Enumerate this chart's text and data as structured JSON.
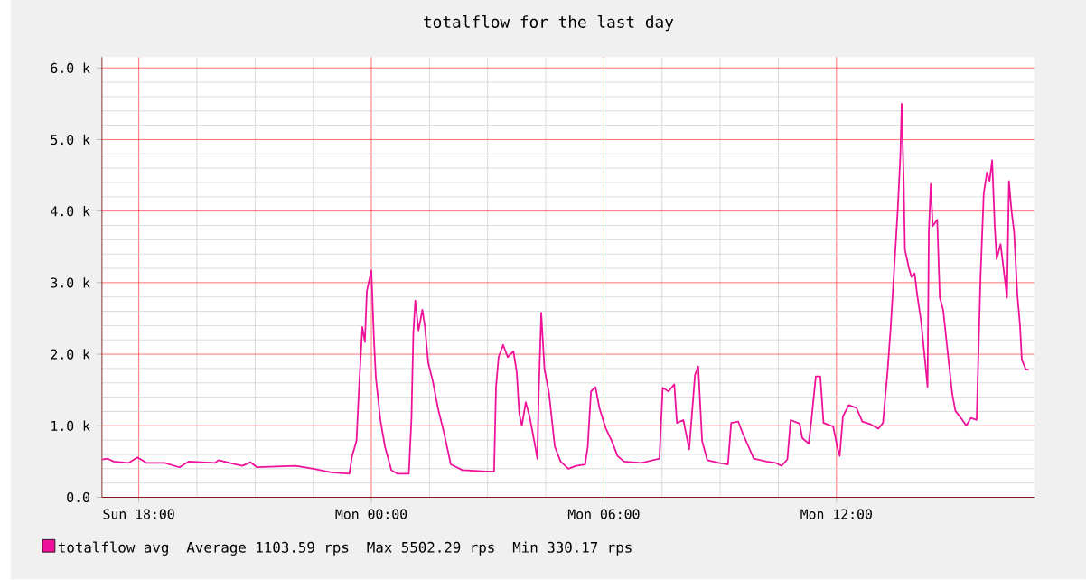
{
  "chart_data": {
    "type": "line",
    "title": "totalflow for the last day",
    "x": [
      "2000-01-02T17:03",
      "2000-01-02T17:12",
      "2000-01-02T17:21",
      "2000-01-02T17:44",
      "2000-01-02T17:58",
      "2000-01-02T18:12",
      "2000-01-02T18:40",
      "2000-01-02T19:03",
      "2000-01-02T19:17",
      "2000-01-02T19:58",
      "2000-01-02T20:03",
      "2000-01-02T20:40",
      "2000-01-02T20:53",
      "2000-01-02T21:03",
      "2000-01-02T22:03",
      "2000-01-02T22:30",
      "2000-01-02T22:58",
      "2000-01-02T23:26",
      "2000-01-02T23:30",
      "2000-01-02T23:37",
      "2000-01-02T23:41",
      "2000-01-02T23:46",
      "2000-01-02T23:50",
      "2000-01-02T23:53",
      "2000-01-03T00:00",
      "2000-01-03T00:04",
      "2000-01-03T00:07",
      "2000-01-03T00:14",
      "2000-01-03T00:21",
      "2000-01-03T00:31",
      "2000-01-03T00:40",
      "2000-01-03T00:58",
      "2000-01-03T01:02",
      "2000-01-03T01:05",
      "2000-01-03T01:08",
      "2000-01-03T01:13",
      "2000-01-03T01:19",
      "2000-01-03T01:23",
      "2000-01-03T01:28",
      "2000-01-03T01:35",
      "2000-01-03T01:43",
      "2000-01-03T01:52",
      "2000-01-03T02:03",
      "2000-01-03T02:21",
      "2000-01-03T02:58",
      "2000-01-03T03:10",
      "2000-01-03T03:13",
      "2000-01-03T03:17",
      "2000-01-03T03:24",
      "2000-01-03T03:31",
      "2000-01-03T03:40",
      "2000-01-03T03:45",
      "2000-01-03T03:49",
      "2000-01-03T03:53",
      "2000-01-03T03:59",
      "2000-01-03T04:05",
      "2000-01-03T04:12",
      "2000-01-03T04:17",
      "2000-01-03T04:19",
      "2000-01-03T04:23",
      "2000-01-03T04:28",
      "2000-01-03T04:35",
      "2000-01-03T04:40",
      "2000-01-03T04:44",
      "2000-01-03T04:53",
      "2000-01-03T05:05",
      "2000-01-03T05:17",
      "2000-01-03T05:31",
      "2000-01-03T05:35",
      "2000-01-03T05:40",
      "2000-01-03T05:47",
      "2000-01-03T05:53",
      "2000-01-03T06:03",
      "2000-01-03T06:12",
      "2000-01-03T06:21",
      "2000-01-03T06:31",
      "2000-01-03T06:58",
      "2000-01-03T07:26",
      "2000-01-03T07:31",
      "2000-01-03T07:40",
      "2000-01-03T07:49",
      "2000-01-03T07:53",
      "2000-01-03T08:03",
      "2000-01-03T08:12",
      "2000-01-03T08:21",
      "2000-01-03T08:26",
      "2000-01-03T08:32",
      "2000-01-03T08:40",
      "2000-01-03T08:58",
      "2000-01-03T09:12",
      "2000-01-03T09:17",
      "2000-01-03T09:28",
      "2000-01-03T09:35",
      "2000-01-03T09:52",
      "2000-01-03T10:12",
      "2000-01-03T10:26",
      "2000-01-03T10:35",
      "2000-01-03T10:44",
      "2000-01-03T10:49",
      "2000-01-03T11:03",
      "2000-01-03T11:07",
      "2000-01-03T11:17",
      "2000-01-03T11:21",
      "2000-01-03T11:28",
      "2000-01-03T11:35",
      "2000-01-03T11:40",
      "2000-01-03T11:55",
      "2000-01-03T12:01",
      "2000-01-03T12:05",
      "2000-01-03T12:10",
      "2000-01-03T12:19",
      "2000-01-03T12:31",
      "2000-01-03T12:40",
      "2000-01-03T12:53",
      "2000-01-03T13:05",
      "2000-01-03T13:12",
      "2000-01-03T13:19",
      "2000-01-03T13:24",
      "2000-01-03T13:29",
      "2000-01-03T13:35",
      "2000-01-03T13:39",
      "2000-01-03T13:41",
      "2000-01-03T13:44",
      "2000-01-03T13:46",
      "2000-01-03T13:52",
      "2000-01-03T13:56",
      "2000-01-03T14:01",
      "2000-01-03T14:05",
      "2000-01-03T14:11",
      "2000-01-03T14:17",
      "2000-01-03T14:21",
      "2000-01-03T14:23",
      "2000-01-03T14:26",
      "2000-01-03T14:29",
      "2000-01-03T14:36",
      "2000-01-03T14:40",
      "2000-01-03T14:45",
      "2000-01-03T14:53",
      "2000-01-03T14:59",
      "2000-01-03T15:04",
      "2000-01-03T15:15",
      "2000-01-03T15:21",
      "2000-01-03T15:28",
      "2000-01-03T15:37",
      "2000-01-03T15:43",
      "2000-01-03T15:48",
      "2000-01-03T15:53",
      "2000-01-03T15:57",
      "2000-01-03T16:01",
      "2000-01-03T16:05",
      "2000-01-03T16:08",
      "2000-01-03T16:14",
      "2000-01-03T16:19",
      "2000-01-03T16:24",
      "2000-01-03T16:27",
      "2000-01-03T16:31",
      "2000-01-03T16:35",
      "2000-01-03T16:40",
      "2000-01-03T16:44",
      "2000-01-03T16:47",
      "2000-01-03T16:53",
      "2000-01-03T16:58"
    ],
    "series": [
      {
        "name": "totalflow avg",
        "color": "#ee1199",
        "values": [
          530,
          540,
          500,
          480,
          560,
          480,
          480,
          420,
          500,
          480,
          520,
          440,
          490,
          420,
          440,
          400,
          350,
          330,
          570,
          790,
          1540,
          2380,
          2170,
          2880,
          3170,
          2210,
          1670,
          1080,
          710,
          380,
          330,
          330,
          1080,
          2290,
          2750,
          2330,
          2620,
          2380,
          1880,
          1630,
          1250,
          920,
          460,
          380,
          360,
          360,
          1540,
          1960,
          2130,
          1960,
          2040,
          1750,
          1170,
          1000,
          1330,
          1130,
          790,
          540,
          1420,
          2580,
          1790,
          1460,
          1040,
          710,
          500,
          400,
          440,
          460,
          710,
          1480,
          1540,
          1250,
          960,
          790,
          580,
          500,
          480,
          540,
          1530,
          1480,
          1580,
          1040,
          1080,
          670,
          1710,
          1830,
          790,
          520,
          480,
          460,
          1040,
          1060,
          890,
          540,
          500,
          480,
          440,
          530,
          1080,
          1030,
          830,
          750,
          1060,
          1690,
          1690,
          1040,
          990,
          710,
          580,
          1130,
          1290,
          1250,
          1060,
          1020,
          960,
          1040,
          1750,
          2380,
          3130,
          4040,
          4790,
          5500,
          4460,
          3460,
          3210,
          3080,
          3130,
          2830,
          2460,
          1920,
          1540,
          3710,
          4380,
          3790,
          3880,
          2790,
          2630,
          1960,
          1460,
          1210,
          1080,
          1000,
          1110,
          1080,
          3080,
          4250,
          4540,
          4420,
          4710,
          3790,
          3330,
          3540,
          3170,
          2790,
          4420,
          4000,
          3710,
          2830,
          2420,
          1920,
          1790,
          1780
        ]
      }
    ],
    "xlim": [
      "2000-01-02T17:03",
      "2000-01-03T17:06"
    ],
    "xticks": [
      {
        "value": "2000-01-02T18:00",
        "label": "Sun 18:00"
      },
      {
        "value": "2000-01-03T00:00",
        "label": "Mon 00:00"
      },
      {
        "value": "2000-01-03T06:00",
        "label": "Mon 06:00"
      },
      {
        "value": "2000-01-03T12:00",
        "label": "Mon 12:00"
      }
    ],
    "ylim": [
      0,
      6150
    ],
    "yticks": [
      {
        "value": 0,
        "label": "0.0"
      },
      {
        "value": 1000,
        "label": "1.0 k"
      },
      {
        "value": 2000,
        "label": "2.0 k"
      },
      {
        "value": 3000,
        "label": "3.0 k"
      },
      {
        "value": 4000,
        "label": "4.0 k"
      },
      {
        "value": 5000,
        "label": "5.0 k"
      },
      {
        "value": 6000,
        "label": "6.0 k"
      }
    ],
    "grid": true,
    "legend": "bottom",
    "annotations": [
      "Average 1103.59 rps",
      "Max 5502.29 rps",
      "Min 330.17 rps"
    ]
  }
}
